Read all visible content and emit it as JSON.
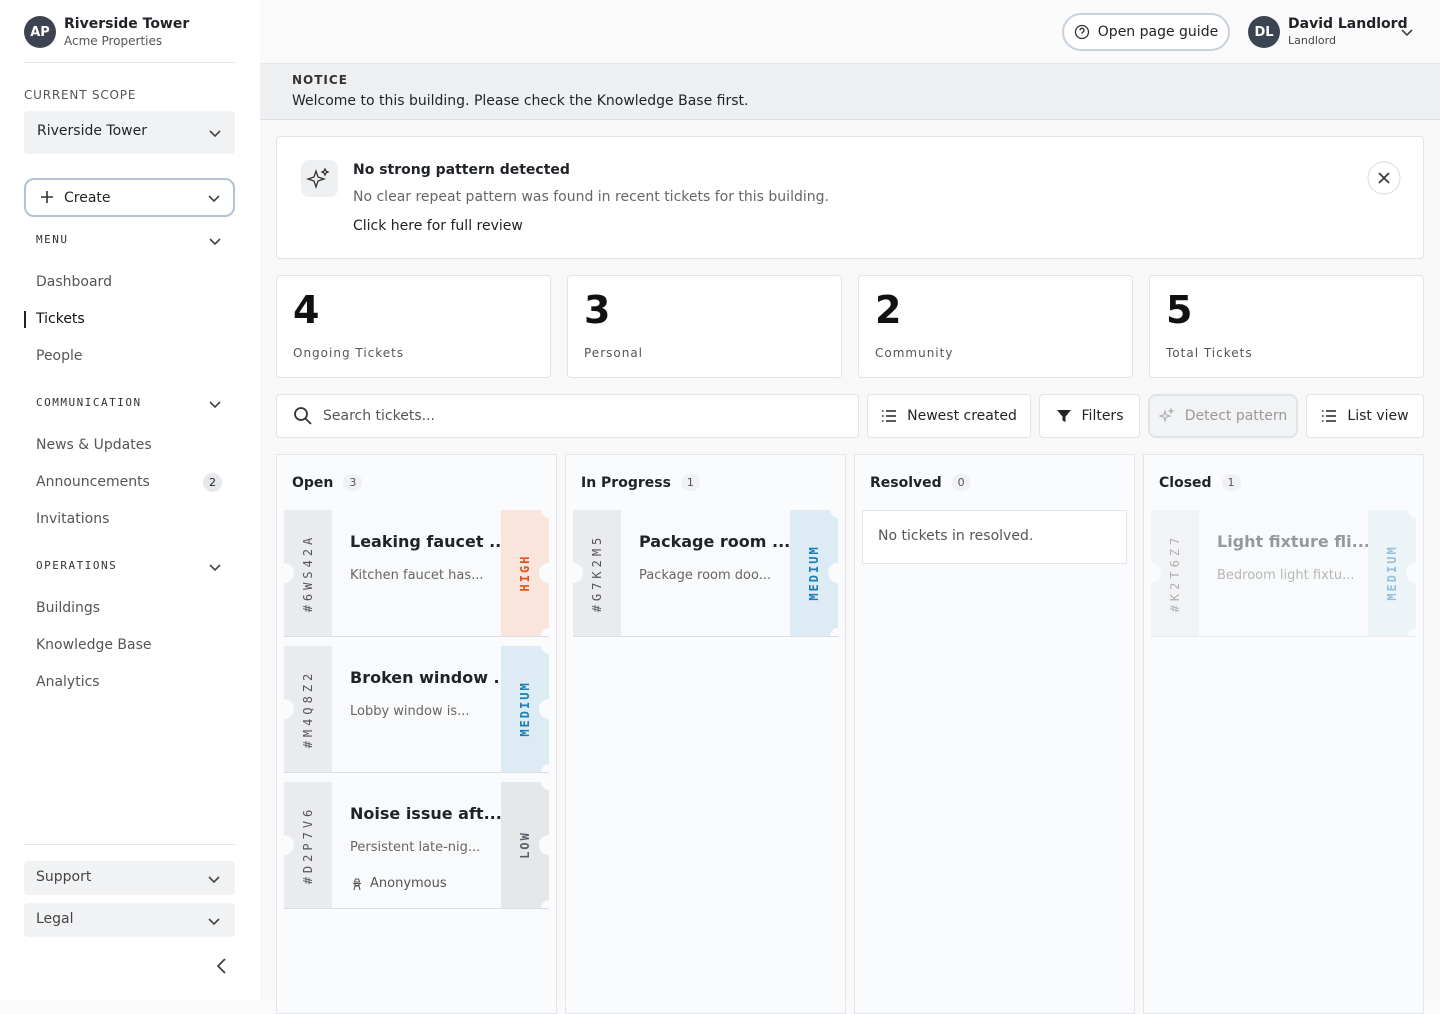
{
  "sidebar": {
    "org": {
      "initials": "AP",
      "name": "Riverside Tower",
      "company": "Acme Properties"
    },
    "scope_label": "CURRENT SCOPE",
    "scope": "Riverside Tower",
    "create": "Create",
    "sections": [
      {
        "title": "MENU",
        "items": [
          {
            "label": "Dashboard"
          },
          {
            "label": "Tickets",
            "active": true
          },
          {
            "label": "People"
          }
        ]
      },
      {
        "title": "COMMUNICATION",
        "items": [
          {
            "label": "News & Updates"
          },
          {
            "label": "Announcements",
            "badge": 2
          },
          {
            "label": "Invitations"
          }
        ]
      },
      {
        "title": "OPERATIONS",
        "items": [
          {
            "label": "Buildings"
          },
          {
            "label": "Knowledge Base"
          },
          {
            "label": "Analytics"
          }
        ]
      }
    ],
    "footer": [
      "Support",
      "Legal"
    ]
  },
  "header": {
    "guide": "Open page guide",
    "user": {
      "initials": "DL",
      "name": "David Landlord",
      "role": "Landlord"
    }
  },
  "notice": {
    "label": "NOTICE",
    "text": "Welcome to this building. Please check the Knowledge Base first."
  },
  "pattern": {
    "title": "No strong pattern detected",
    "text": "No clear repeat pattern was found in recent tickets for this building.",
    "link": "Click here for full review"
  },
  "stats": [
    {
      "value": 4,
      "label": "Ongoing Tickets"
    },
    {
      "value": 3,
      "label": "Personal"
    },
    {
      "value": 2,
      "label": "Community"
    },
    {
      "value": 5,
      "label": "Total Tickets"
    }
  ],
  "toolbar": {
    "search": "Search tickets...",
    "sort": "Newest created",
    "filters": "Filters",
    "detect": "Detect pattern",
    "view": "List view"
  },
  "columns": [
    {
      "name": "Open",
      "count": 3,
      "tickets": [
        {
          "id": "#6WS42A",
          "title": "Leaking faucet ...",
          "desc": "Kitchen faucet has...",
          "priority": "HIGH",
          "color": "#e0531f"
        },
        {
          "id": "#M4Q8Z2",
          "title": "Broken window ...",
          "desc": "Lobby window is...",
          "priority": "MEDIUM",
          "color": "#1c7db5"
        },
        {
          "id": "#D2P7V6",
          "title": "Noise issue aft...",
          "desc": "Persistent late-nig...",
          "author": "Anonymous",
          "priority": "LOW",
          "color": "#5b6068"
        }
      ]
    },
    {
      "name": "In Progress",
      "count": 1,
      "tickets": [
        {
          "id": "#G7K2M5",
          "title": "Package room ...",
          "desc": "Package room doo...",
          "priority": "MEDIUM",
          "color": "#1c7db5"
        }
      ]
    },
    {
      "name": "Resolved",
      "count": 0,
      "empty": "No tickets in resolved.",
      "tickets": []
    },
    {
      "name": "Closed",
      "count": 1,
      "faded": true,
      "tickets": [
        {
          "id": "#K2T6Z7",
          "title": "Light fixture fli...",
          "desc": "Bedroom light fixtu...",
          "priority": "MEDIUM",
          "color": "#1c7db5"
        }
      ]
    }
  ]
}
